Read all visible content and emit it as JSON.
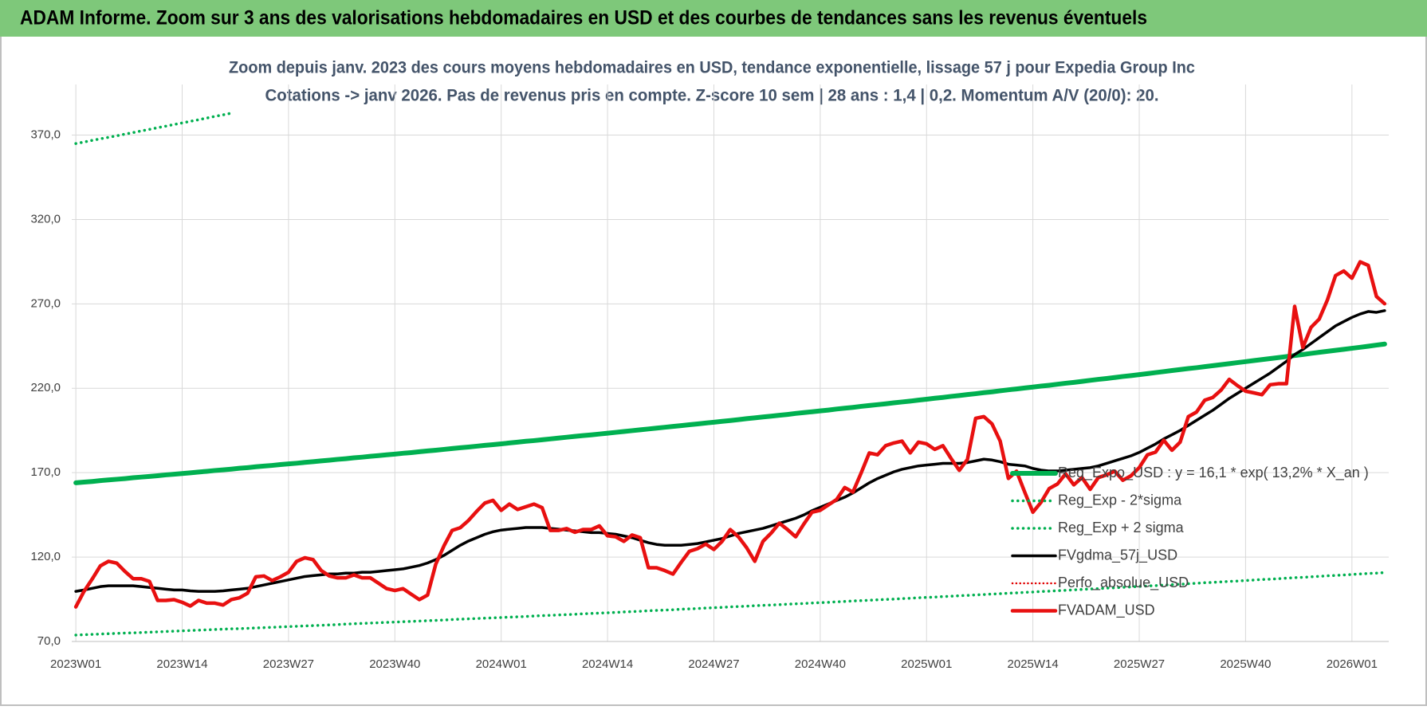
{
  "chart_data": {
    "type": "line",
    "title": "ADAM Informe. Zoom sur 3 ans des valorisations hebdomadaires en USD et des courbes de tendances sans les revenus éventuels",
    "subtitle": [
      "Zoom depuis janv. 2023 des cours moyens hebdomadaires en USD, tendance exponentielle, lissage 57 j pour Expedia Group Inc",
      "Cotations -> janv 2026. Pas de revenus pris en compte. Z-score 10 sem  | 28 ans : 1,4 | 0,2. Momentum A/V (20/0): 20."
    ],
    "categories": [
      "2023W01",
      null,
      null,
      null,
      null,
      null,
      null,
      null,
      null,
      null,
      null,
      null,
      null,
      "2023W14",
      null,
      null,
      null,
      null,
      null,
      null,
      null,
      null,
      null,
      null,
      null,
      null,
      "2023W27",
      null,
      null,
      null,
      null,
      null,
      null,
      null,
      null,
      null,
      null,
      null,
      null,
      "2023W40",
      null,
      null,
      null,
      null,
      null,
      null,
      null,
      null,
      null,
      null,
      null,
      null,
      "2024W01",
      null,
      null,
      null,
      null,
      null,
      null,
      null,
      null,
      null,
      null,
      null,
      null,
      "2024W14",
      null,
      null,
      null,
      null,
      null,
      null,
      null,
      null,
      null,
      null,
      null,
      null,
      "2024W27",
      null,
      null,
      null,
      null,
      null,
      null,
      null,
      null,
      null,
      null,
      null,
      null,
      "2024W40",
      null,
      null,
      null,
      null,
      null,
      null,
      null,
      null,
      null,
      null,
      null,
      null,
      "2025W01",
      null,
      null,
      null,
      null,
      null,
      null,
      null,
      null,
      null,
      null,
      null,
      null,
      "2025W14",
      null,
      null,
      null,
      null,
      null,
      null,
      null,
      null,
      null,
      null,
      null,
      null,
      "2025W27",
      null,
      null,
      null,
      null,
      null,
      null,
      null,
      null,
      null,
      null,
      null,
      null,
      "2025W40",
      null,
      null,
      null,
      null,
      null,
      null,
      null,
      null,
      null,
      null,
      null,
      null,
      "2026W01",
      null,
      null,
      null,
      null
    ],
    "ylim": [
      70,
      400
    ],
    "yticks": [
      {
        "value": 70,
        "label": "70,0"
      },
      {
        "value": 120,
        "label": "120,0"
      },
      {
        "value": 170,
        "label": "170,0"
      },
      {
        "value": 220,
        "label": "220,0"
      },
      {
        "value": 270,
        "label": "270,0"
      },
      {
        "value": 320,
        "label": "320,0"
      },
      {
        "value": 370,
        "label": "370,0"
      }
    ],
    "grid": true,
    "legend": "lower-right",
    "series": [
      {
        "name": "Reg_Expo_USD : y = 16,1 * exp( 13,2% *  X_an )",
        "color": "#00b050",
        "line_style": "solid",
        "line_width": 6,
        "values": [
          164.0,
          164.4,
          164.8,
          165.3,
          165.7,
          166.1,
          166.5,
          167.0,
          167.4,
          167.8,
          168.2,
          168.7,
          169.1,
          169.5,
          169.9,
          170.4,
          170.8,
          171.3,
          171.7,
          172.1,
          172.6,
          173.0,
          173.5,
          173.9,
          174.3,
          174.8,
          175.2,
          175.6,
          176.1,
          176.5,
          177.0,
          177.4,
          177.9,
          178.3,
          178.8,
          179.2,
          179.7,
          180.1,
          180.6,
          181.0,
          181.5,
          181.9,
          182.4,
          182.9,
          183.3,
          183.8,
          184.3,
          184.8,
          185.2,
          185.7,
          186.2,
          186.6,
          187.1,
          187.6,
          188.1,
          188.6,
          189.0,
          189.5,
          190.0,
          190.5,
          191.0,
          191.5,
          192.0,
          192.4,
          192.9,
          193.4,
          193.9,
          194.4,
          194.9,
          195.4,
          195.9,
          196.4,
          196.9,
          197.4,
          197.9,
          198.4,
          198.9,
          199.4,
          199.9,
          200.4,
          200.9,
          201.4,
          202.0,
          202.5,
          203.0,
          203.5,
          204.0,
          204.5,
          205.1,
          205.6,
          206.1,
          206.6,
          207.1,
          207.7,
          208.2,
          208.7,
          209.3,
          209.8,
          210.3,
          210.8,
          211.4,
          211.9,
          212.4,
          213.0,
          213.5,
          214.1,
          214.6,
          215.2,
          215.7,
          216.3,
          216.8,
          217.4,
          217.9,
          218.5,
          219.1,
          219.6,
          220.2,
          220.7,
          221.3,
          221.8,
          222.4,
          223.0,
          223.5,
          224.1,
          224.7,
          225.3,
          225.8,
          226.4,
          227.0,
          227.5,
          228.1,
          228.7,
          229.3,
          229.9,
          230.5,
          231.1,
          231.7,
          232.2,
          232.8,
          233.4,
          234.0,
          234.6,
          235.2,
          235.8,
          236.4,
          237.0,
          237.6,
          238.2,
          238.8,
          239.4,
          240.0,
          240.7,
          241.3,
          241.9,
          242.5,
          243.1,
          243.7,
          244.3,
          244.9,
          245.6,
          246.2
        ]
      },
      {
        "name": "Reg_Exp - 2*sigma",
        "color": "#00b050",
        "line_style": "dotted",
        "line_width": 3.5,
        "values": [
          73.8,
          74.0,
          74.2,
          74.4,
          74.6,
          74.8,
          75.0,
          75.1,
          75.3,
          75.5,
          75.7,
          75.9,
          76.1,
          76.3,
          76.5,
          76.7,
          76.9,
          77.1,
          77.3,
          77.5,
          77.6,
          77.8,
          78.0,
          78.2,
          78.4,
          78.6,
          78.8,
          79.0,
          79.2,
          79.4,
          79.6,
          79.8,
          80.0,
          80.3,
          80.5,
          80.7,
          80.9,
          81.1,
          81.3,
          81.5,
          81.7,
          81.9,
          82.1,
          82.3,
          82.5,
          82.7,
          83.0,
          83.2,
          83.4,
          83.6,
          83.8,
          84.0,
          84.2,
          84.4,
          84.6,
          84.8,
          85.1,
          85.3,
          85.5,
          85.7,
          85.9,
          86.1,
          86.4,
          86.6,
          86.8,
          87.0,
          87.2,
          87.5,
          87.7,
          87.9,
          88.2,
          88.4,
          88.6,
          88.8,
          89.1,
          89.3,
          89.5,
          89.8,
          90.0,
          90.2,
          90.5,
          90.7,
          90.9,
          91.2,
          91.4,
          91.6,
          91.8,
          92.1,
          92.3,
          92.5,
          92.8,
          93.0,
          93.2,
          93.5,
          93.7,
          94.0,
          94.2,
          94.4,
          94.7,
          94.9,
          95.1,
          95.4,
          95.6,
          95.9,
          96.1,
          96.3,
          96.6,
          96.8,
          97.1,
          97.3,
          97.6,
          97.8,
          98.1,
          98.3,
          98.6,
          98.8,
          99.1,
          99.3,
          99.6,
          99.8,
          100.1,
          100.3,
          100.6,
          100.8,
          101.1,
          101.3,
          101.6,
          101.8,
          102.1,
          102.3,
          102.6,
          102.9,
          103.1,
          103.4,
          103.7,
          103.9,
          104.2,
          104.5,
          104.8,
          105.0,
          105.3,
          105.6,
          105.8,
          106.1,
          106.4,
          106.7,
          106.9,
          107.2,
          107.5,
          107.8,
          108.0,
          108.3,
          108.6,
          108.9,
          109.1,
          109.4,
          109.7,
          110.0,
          110.3,
          110.5,
          110.8
        ]
      },
      {
        "name": "Reg_Exp + 2 sigma",
        "color": "#00b050",
        "line_style": "dotted",
        "line_width": 3.5,
        "values": [
          365.0,
          365.9,
          366.9,
          367.8,
          368.7,
          369.6,
          370.6,
          371.5,
          372.5,
          373.4,
          374.4,
          375.3,
          376.3,
          377.2,
          378.2,
          379.1,
          380.1,
          381.1,
          382.0,
          383.0,
          null,
          null,
          null,
          null,
          null,
          null,
          null,
          null,
          null,
          null,
          null,
          null,
          null,
          null,
          null,
          null,
          null,
          null,
          null,
          null,
          null,
          null,
          null,
          null,
          null,
          null,
          null,
          null,
          null,
          null,
          null,
          null,
          null,
          null,
          null,
          null,
          null,
          null,
          null,
          null,
          null,
          null,
          null,
          null,
          null,
          null,
          null,
          null,
          null,
          null,
          null,
          null,
          null,
          null,
          null,
          null,
          null,
          null,
          null,
          null,
          null,
          null,
          null,
          null,
          null,
          null,
          null,
          null,
          null,
          null,
          null,
          null,
          null,
          null,
          null,
          null,
          null,
          null,
          null,
          null,
          null,
          null,
          null,
          null,
          null,
          null,
          null,
          null,
          null,
          null,
          null,
          null,
          null,
          null,
          null,
          null,
          null,
          null,
          null,
          null,
          null,
          null,
          null,
          null,
          null,
          null,
          null,
          null,
          null,
          null,
          null,
          null,
          null,
          null,
          null,
          null,
          null,
          null,
          null,
          null,
          null,
          null,
          null,
          null,
          null,
          null,
          null,
          null,
          null,
          null,
          null,
          null,
          null,
          null,
          null,
          null,
          null,
          null,
          null,
          null,
          null
        ]
      },
      {
        "name": "FVgdma_57j_USD",
        "color": "#000000",
        "line_style": "solid",
        "line_width": 3.5,
        "values": [
          99.7,
          100.5,
          101.5,
          102.5,
          103,
          103,
          103,
          103,
          102.5,
          102,
          101.5,
          101,
          100.5,
          100.5,
          100,
          99.7,
          99.7,
          99.7,
          100,
          100.5,
          101,
          101.5,
          102.5,
          103.5,
          104.5,
          105.5,
          106.5,
          107.5,
          108.5,
          109,
          109.5,
          110,
          110,
          110.5,
          110.5,
          111,
          111,
          111.5,
          112,
          112.5,
          113,
          114,
          115,
          116.5,
          118.5,
          121,
          124,
          127,
          129.5,
          131.5,
          133.5,
          135,
          136,
          136.5,
          137,
          137.5,
          137.5,
          137.5,
          137,
          136.5,
          136,
          135.5,
          135,
          134.5,
          134.5,
          134,
          133.5,
          132.5,
          131.5,
          130,
          128.5,
          127.5,
          127,
          127,
          127,
          127.5,
          128,
          129,
          130,
          131,
          132.5,
          134,
          135,
          136,
          137,
          138.5,
          140,
          141.5,
          143,
          145,
          147.5,
          149.5,
          151.5,
          153.5,
          155.5,
          158,
          161,
          164,
          166.5,
          168.5,
          170.5,
          172,
          173,
          174,
          174.5,
          175,
          175.5,
          175.5,
          175.5,
          176,
          177,
          178,
          177.5,
          176.5,
          175,
          174.5,
          174,
          172.5,
          171.5,
          171,
          171,
          171.5,
          172,
          172.5,
          173,
          174,
          175.5,
          177,
          178.5,
          180,
          182,
          184.5,
          187,
          190,
          192.5,
          195,
          198,
          201,
          204,
          207,
          210.5,
          214,
          217,
          220,
          223,
          226,
          229,
          232.5,
          236,
          240,
          243,
          246.5,
          250,
          253.5,
          257,
          259.5,
          262,
          264,
          265.5,
          265,
          266
        ]
      },
      {
        "name": "Perfo_absolue_USD",
        "color": "#e00000",
        "line_style": "dotted",
        "line_width": 2.5,
        "values": [
          null,
          null,
          null,
          null,
          null,
          null,
          null,
          null,
          null,
          null,
          null,
          null,
          null,
          null,
          null,
          null,
          null,
          null,
          null,
          null,
          null,
          null,
          null,
          null,
          null,
          null,
          null,
          null,
          null,
          null,
          null,
          null,
          null,
          null,
          null,
          null,
          null,
          null,
          null,
          null,
          null,
          null,
          null,
          null,
          null,
          null,
          null,
          null,
          null,
          null,
          null,
          null,
          null,
          null,
          null,
          null,
          null,
          null,
          null,
          null,
          null,
          null,
          null,
          null,
          null,
          null,
          null,
          null,
          null,
          null,
          null,
          null,
          null,
          null,
          null,
          null,
          null,
          null,
          null,
          null,
          null,
          null,
          null,
          null,
          null,
          null,
          null,
          null,
          null,
          null,
          null,
          null,
          null,
          null,
          null,
          null,
          null,
          null,
          null,
          null,
          null,
          null,
          null,
          null,
          null,
          null,
          null,
          null,
          null,
          null,
          null,
          null,
          null,
          null,
          null,
          null,
          null,
          null,
          null,
          null,
          null,
          null,
          null,
          null,
          null,
          null,
          null,
          null,
          null,
          null,
          null,
          null,
          null,
          null,
          null,
          null,
          null,
          null,
          null,
          null,
          null,
          null,
          null,
          null,
          null,
          null,
          null,
          null,
          null,
          null,
          null,
          null,
          null,
          null,
          null,
          null,
          null,
          null,
          null,
          null,
          null
        ]
      },
      {
        "name": "FVADAM_USD",
        "color": "#e81010",
        "line_style": "solid",
        "line_width": 4.5,
        "values": [
          90.5,
          99.7,
          107,
          114.8,
          117.5,
          116.4,
          111.5,
          107.2,
          107.2,
          105.6,
          94.3,
          94.3,
          94.8,
          93.2,
          91,
          94.3,
          92.7,
          92.7,
          91.6,
          94.8,
          95.9,
          98.6,
          108.3,
          108.8,
          106.1,
          108.3,
          111,
          117.5,
          119.6,
          118.5,
          112,
          108.8,
          107.7,
          107.7,
          109.4,
          107.7,
          107.7,
          104.5,
          101.3,
          100.2,
          101.3,
          98,
          94.8,
          97.5,
          115.8,
          126.6,
          135.8,
          137.4,
          141.7,
          147.1,
          152,
          153.6,
          147.7,
          151.4,
          148.2,
          149.8,
          151.4,
          149.3,
          135.8,
          135.8,
          136.9,
          134.7,
          136.3,
          136.3,
          138.5,
          132.6,
          132,
          129.3,
          133.1,
          131.5,
          113.7,
          113.7,
          112,
          109.9,
          116.9,
          123.4,
          125,
          127.7,
          124.5,
          129.3,
          136.3,
          132,
          125.6,
          117.5,
          129.3,
          134.2,
          140.1,
          136.3,
          132,
          139.6,
          146.6,
          147.7,
          150.9,
          154.1,
          161.2,
          158.5,
          169.8,
          181.7,
          180.6,
          186,
          187.6,
          188.7,
          181.7,
          188.1,
          187.1,
          183.8,
          186,
          178.4,
          171.4,
          177.9,
          202.2,
          203.2,
          198.9,
          188.7,
          166.6,
          170.9,
          158.5,
          146.6,
          152.5,
          160.6,
          163.3,
          169.3,
          162.8,
          167.1,
          160.1,
          167.1,
          168.7,
          170.9,
          165.5,
          168.2,
          173,
          180.6,
          182.2,
          189.2,
          183.3,
          188.1,
          203.2,
          205.9,
          212.9,
          214.6,
          218.9,
          225.3,
          221.6,
          218.3,
          217.3,
          216.2,
          222.1,
          222.7,
          222.7,
          268.5,
          244.2,
          256.1,
          261,
          272.3,
          286.8,
          289.5,
          285.2,
          294.9,
          292.8,
          274.4,
          270.1
        ]
      }
    ]
  }
}
